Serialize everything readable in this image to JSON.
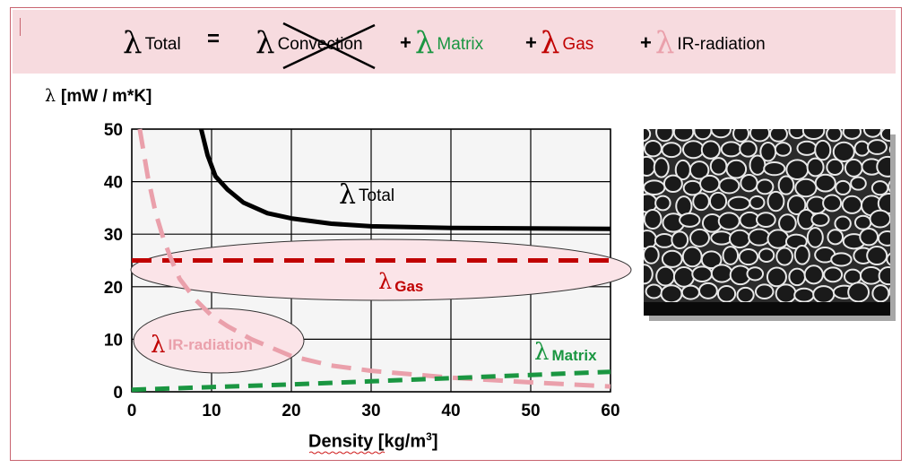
{
  "header": {
    "total_label": "Total",
    "equals": "=",
    "convection_label": "Convection",
    "matrix_label": "Matrix",
    "gas_label": "Gas",
    "ir_label": "IR-radiation",
    "plus": "+",
    "lambda": "λ"
  },
  "colors": {
    "total": "#000000",
    "gas": "#c00000",
    "matrix": "#1a9641",
    "ir": "#eaa0ab",
    "ellipse_fill": "#fbe4e8",
    "frame": "#c86470"
  },
  "micrograph": {
    "icon": "foam-cell-structure-image"
  },
  "chart_data": {
    "type": "line",
    "xlabel": "Density [kg/m³]",
    "xlabel_text": "Density [kg/m",
    "xlabel_sup": "3",
    "xlabel_end": "]",
    "ylabel": "λ [mW / m*K]",
    "ylabel_text": "[mW / m*K]",
    "xlim": [
      0,
      60
    ],
    "ylim": [
      0,
      50
    ],
    "xticks": [
      0,
      10,
      20,
      30,
      40,
      50,
      60
    ],
    "yticks": [
      0,
      10,
      20,
      30,
      40,
      50
    ],
    "grid": true,
    "series": [
      {
        "name": "Total",
        "style": "solid",
        "x": [
          8.7,
          9.5,
          10.5,
          12,
          14,
          17,
          20,
          25,
          30,
          40,
          50,
          60
        ],
        "y": [
          50,
          45,
          41,
          38.5,
          36,
          34,
          33,
          32,
          31.5,
          31.2,
          31.1,
          31
        ]
      },
      {
        "name": "Gas",
        "style": "dashed",
        "x": [
          0,
          60
        ],
        "y": [
          25,
          25
        ]
      },
      {
        "name": "IR-radiation",
        "style": "dashed",
        "x": [
          1,
          2,
          3,
          4,
          5,
          6,
          8,
          10,
          12,
          15,
          20,
          25,
          30,
          40,
          50,
          60
        ],
        "y": [
          50,
          41,
          34,
          29,
          25,
          21.5,
          17.5,
          14.5,
          12.5,
          10,
          6.8,
          5,
          4,
          2.7,
          1.8,
          1
        ]
      },
      {
        "name": "Matrix",
        "style": "dashed",
        "x": [
          0,
          10,
          20,
          30,
          40,
          50,
          60
        ],
        "y": [
          0.4,
          0.9,
          1.4,
          2.0,
          2.6,
          3.2,
          3.8
        ]
      }
    ]
  }
}
